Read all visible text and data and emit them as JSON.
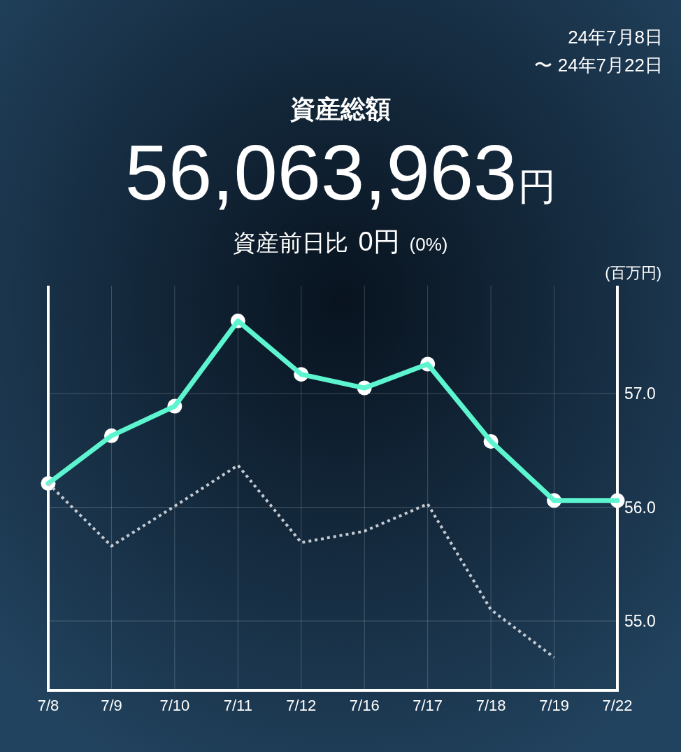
{
  "chart_data": {
    "type": "line",
    "title": "資産総額",
    "ylabel": "(百万円)",
    "annotations": [
      "24年7月8日",
      "〜 24年7月22日",
      "56,063,963",
      "円",
      "資産前日比",
      "0円",
      "(0%)"
    ],
    "categories": [
      "7/8",
      "7/9",
      "7/10",
      "7/11",
      "7/12",
      "7/16",
      "7/17",
      "7/18",
      "7/19",
      "7/22"
    ],
    "series": [
      {
        "color": "#5cf5d0",
        "values": [
          56.21,
          56.63,
          56.89,
          57.64,
          57.17,
          57.05,
          57.26,
          56.58,
          56.06,
          56.06
        ],
        "marker": "circle",
        "line_style": "solid"
      },
      {
        "color": "#c5cbd2",
        "values": [
          56.21,
          55.66,
          56.01,
          56.37,
          55.69,
          55.79,
          56.03,
          55.1,
          54.68,
          null
        ],
        "marker": "none",
        "line_style": "dotted"
      }
    ],
    "ylim": [
      54.39,
      57.95
    ],
    "yticks": [
      {
        "value": 55,
        "label": "55.0"
      },
      {
        "value": 56,
        "label": "56.0"
      },
      {
        "value": 57,
        "label": "57.0"
      }
    ],
    "grid": true
  }
}
